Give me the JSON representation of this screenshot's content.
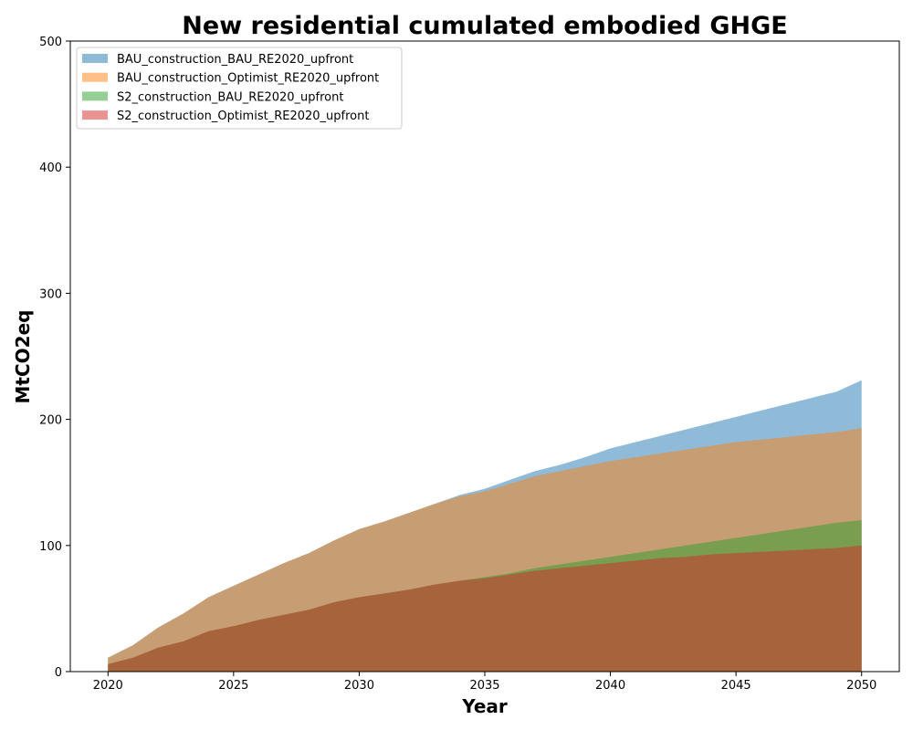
{
  "chart_data": {
    "type": "area",
    "title": "New residential cumulated embodied GHGE",
    "xlabel": "Year",
    "ylabel": "MtCO2eq",
    "xlim": [
      2018.5,
      2051.5
    ],
    "ylim": [
      0,
      500
    ],
    "x_ticks": [
      "2020",
      "2025",
      "2030",
      "2035",
      "2040",
      "2045",
      "2050"
    ],
    "y_ticks": [
      "0",
      "100",
      "200",
      "300",
      "400",
      "500"
    ],
    "grid": false,
    "legend_position": "upper-left",
    "x": [
      2020,
      2021,
      2022,
      2023,
      2024,
      2025,
      2026,
      2027,
      2028,
      2029,
      2030,
      2031,
      2032,
      2033,
      2034,
      2035,
      2036,
      2037,
      2038,
      2039,
      2040,
      2041,
      2042,
      2043,
      2044,
      2045,
      2046,
      2047,
      2048,
      2049,
      2050
    ],
    "series": [
      {
        "name": "BAU_construction_BAU_RE2020_upfront",
        "color": "#1f77b4",
        "values": [
          11,
          21,
          35,
          46,
          59,
          68,
          77,
          86,
          94,
          104,
          113,
          119,
          126,
          133,
          140,
          145,
          152,
          159,
          164,
          170,
          177,
          182,
          187,
          192,
          197,
          202,
          207,
          212,
          217,
          222,
          231
        ]
      },
      {
        "name": "BAU_construction_Optimist_RE2020_upfront",
        "color": "#ff7f0e",
        "values": [
          11,
          21,
          35,
          46,
          59,
          68,
          77,
          86,
          94,
          104,
          113,
          119,
          126,
          133,
          139,
          143,
          149,
          155,
          159,
          163,
          167,
          170,
          173,
          176,
          179,
          182,
          184,
          186,
          188,
          190,
          193
        ]
      },
      {
        "name": "S2_construction_BAU_RE2020_upfront",
        "color": "#2ca02c",
        "values": [
          6,
          11,
          19,
          24,
          32,
          36,
          41,
          45,
          49,
          55,
          59,
          62,
          65,
          69,
          72,
          75,
          78,
          82,
          85,
          88,
          91,
          94,
          97,
          100,
          103,
          106,
          109,
          112,
          115,
          118,
          120
        ]
      },
      {
        "name": "S2_construction_Optimist_RE2020_upfront",
        "color": "#d62728",
        "values": [
          6,
          11,
          19,
          24,
          32,
          36,
          41,
          45,
          49,
          55,
          59,
          62,
          65,
          69,
          72,
          74,
          77,
          80,
          82,
          84,
          86,
          88,
          90,
          91,
          93,
          94,
          95,
          96,
          97,
          98,
          100
        ]
      }
    ]
  }
}
